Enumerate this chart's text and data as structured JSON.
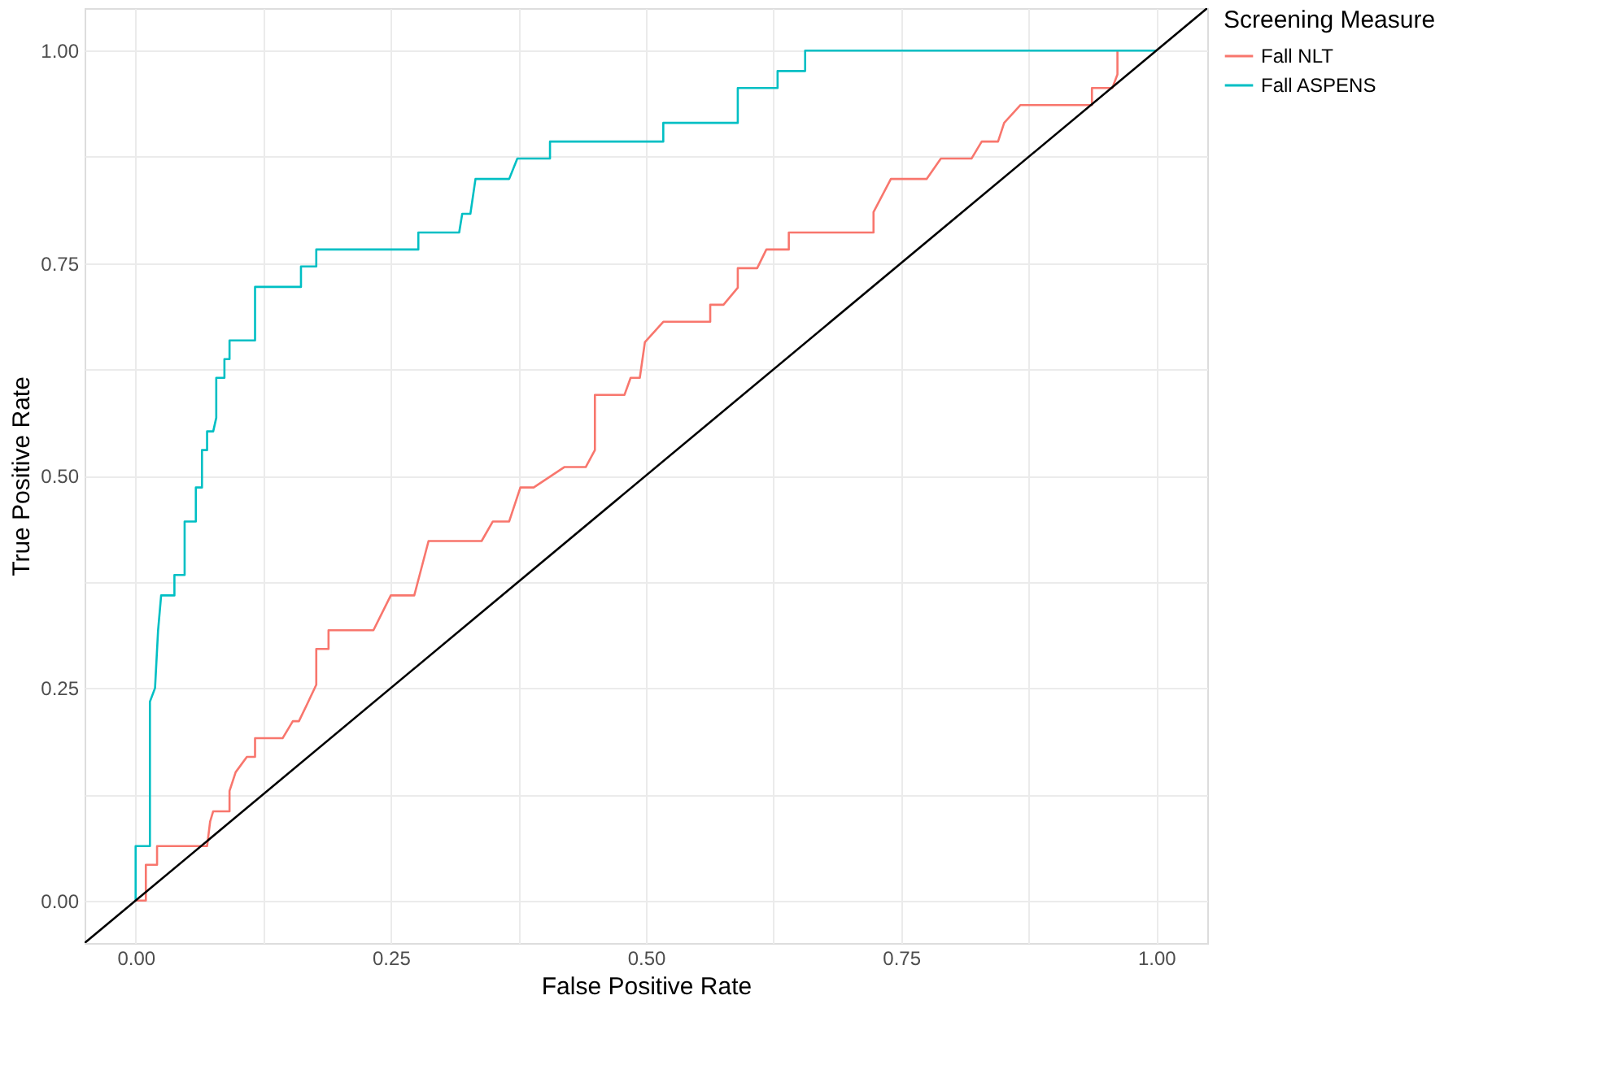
{
  "chart_data": {
    "type": "line",
    "xlabel": "False Positive Rate",
    "ylabel": "True Positive Rate",
    "legend_title": "Screening Measure",
    "legend": "right",
    "grid": true,
    "line_style": "solid",
    "marker": "none",
    "xlim": [
      -0.05,
      1.05
    ],
    "ylim": [
      -0.05,
      1.05
    ],
    "xticks": [
      {
        "value": 0,
        "label": "0.00"
      },
      {
        "value": 0.125,
        "label": null
      },
      {
        "value": 0.25,
        "label": "0.25"
      },
      {
        "value": 0.375,
        "label": null
      },
      {
        "value": 0.5,
        "label": "0.50"
      },
      {
        "value": 0.625,
        "label": null
      },
      {
        "value": 0.75,
        "label": "0.75"
      },
      {
        "value": 0.875,
        "label": null
      },
      {
        "value": 1,
        "label": "1.00"
      }
    ],
    "yticks": [
      {
        "value": 0,
        "label": "0.00"
      },
      {
        "value": 0.125,
        "label": null
      },
      {
        "value": 0.25,
        "label": "0.25"
      },
      {
        "value": 0.375,
        "label": null
      },
      {
        "value": 0.5,
        "label": "0.50"
      },
      {
        "value": 0.625,
        "label": null
      },
      {
        "value": 0.75,
        "label": "0.75"
      },
      {
        "value": 0.875,
        "label": null
      },
      {
        "value": 1,
        "label": "1.00"
      }
    ],
    "series": [
      {
        "name": "Fall NLT",
        "color": "#f8766d",
        "x": [
          0,
          0.01,
          0.01,
          0.021,
          0.021,
          0.07,
          0.073,
          0.076,
          0.092,
          0.092,
          0.098,
          0.109,
          0.117,
          0.117,
          0.144,
          0.154,
          0.16,
          0.168,
          0.177,
          0.177,
          0.189,
          0.189,
          0.233,
          0.25,
          0.273,
          0.287,
          0.339,
          0.35,
          0.366,
          0.377,
          0.39,
          0.42,
          0.441,
          0.45,
          0.45,
          0.479,
          0.485,
          0.494,
          0.499,
          0.517,
          0.563,
          0.563,
          0.576,
          0.59,
          0.59,
          0.609,
          0.618,
          0.64,
          0.64,
          0.723,
          0.723,
          0.74,
          0.775,
          0.789,
          0.819,
          0.829,
          0.845,
          0.851,
          0.867,
          0.937,
          0.937,
          0.957,
          0.962,
          0.962
        ],
        "values": [
          0,
          0,
          0.042,
          0.042,
          0.064,
          0.064,
          0.093,
          0.105,
          0.105,
          0.129,
          0.151,
          0.169,
          0.169,
          0.191,
          0.191,
          0.211,
          0.211,
          0.231,
          0.254,
          0.296,
          0.296,
          0.318,
          0.318,
          0.359,
          0.359,
          0.423,
          0.423,
          0.446,
          0.446,
          0.486,
          0.486,
          0.51,
          0.51,
          0.53,
          0.595,
          0.595,
          0.615,
          0.615,
          0.657,
          0.681,
          0.681,
          0.701,
          0.701,
          0.721,
          0.744,
          0.744,
          0.766,
          0.766,
          0.786,
          0.786,
          0.81,
          0.849,
          0.849,
          0.873,
          0.873,
          0.893,
          0.893,
          0.915,
          0.936,
          0.936,
          0.956,
          0.956,
          0.972,
          1.0
        ]
      },
      {
        "name": "Fall ASPENS",
        "color": "#00bfc4",
        "x": [
          0,
          0,
          0.014,
          0.014,
          0.019,
          0.022,
          0.025,
          0.038,
          0.038,
          0.048,
          0.048,
          0.059,
          0.059,
          0.065,
          0.065,
          0.07,
          0.07,
          0.076,
          0.079,
          0.079,
          0.087,
          0.087,
          0.092,
          0.092,
          0.117,
          0.117,
          0.162,
          0.162,
          0.177,
          0.177,
          0.277,
          0.277,
          0.317,
          0.32,
          0.328,
          0.333,
          0.366,
          0.374,
          0.406,
          0.406,
          0.517,
          0.517,
          0.59,
          0.59,
          0.629,
          0.629,
          0.656,
          0.656,
          1
        ],
        "values": [
          0,
          0.064,
          0.064,
          0.234,
          0.25,
          0.318,
          0.359,
          0.359,
          0.383,
          0.383,
          0.446,
          0.446,
          0.486,
          0.486,
          0.53,
          0.53,
          0.552,
          0.552,
          0.568,
          0.615,
          0.615,
          0.637,
          0.637,
          0.659,
          0.659,
          0.722,
          0.722,
          0.746,
          0.746,
          0.766,
          0.766,
          0.786,
          0.786,
          0.808,
          0.808,
          0.849,
          0.849,
          0.873,
          0.873,
          0.893,
          0.893,
          0.915,
          0.915,
          0.956,
          0.956,
          0.976,
          0.976,
          1.0,
          1.0
        ]
      },
      {
        "color": "#000000",
        "x": [
          -0.05,
          1.05
        ],
        "values": [
          -0.05,
          1.05
        ]
      }
    ]
  }
}
